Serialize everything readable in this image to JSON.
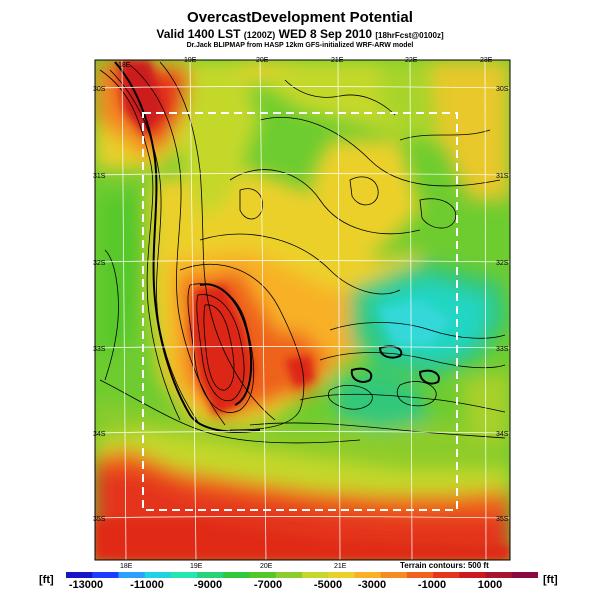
{
  "title": "OvercastDevelopment Potential",
  "valid_line": {
    "main": "Valid 1400 LST",
    "utc": "(1200Z)",
    "date": "WED 8 Sep 2010",
    "fcst": "[18hrFcst@0100z]"
  },
  "source_line": "Dr.Jack BLIPMAP from HASP 12km GFS-initialized WRF-ARW model",
  "terrain_note": "Terrain contours: 500 ft",
  "units_left": "[ft]",
  "units_right": "[ft]",
  "longitude_labels": [
    "18E",
    "19E",
    "20E",
    "21E",
    "22E",
    "23E"
  ],
  "latitude_labels": [
    "30S",
    "31S",
    "32S",
    "33S",
    "34S",
    "35S"
  ],
  "colorbar": {
    "labels": [
      "-13000",
      "-11000",
      "-9000",
      "-7000",
      "-5000",
      "-3000",
      "-1000",
      "1000"
    ],
    "colors": [
      "#1a14c8",
      "#1e3cff",
      "#2ca0ff",
      "#20d2e6",
      "#22e8b0",
      "#28d27a",
      "#30c83c",
      "#50c828",
      "#8ccc2c",
      "#c4d82c",
      "#ecd02a",
      "#f8b026",
      "#f48c22",
      "#ee621e",
      "#e4361c",
      "#cc1a1c",
      "#a81430",
      "#880a40"
    ]
  },
  "legend_colors": {
    "map_base": "#6ecc30",
    "high": "#e63418",
    "low": "#20d6c4",
    "contour": "#000000",
    "grid": "#ffffff"
  }
}
